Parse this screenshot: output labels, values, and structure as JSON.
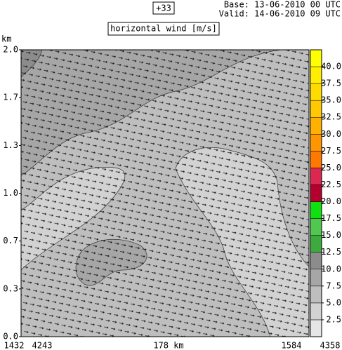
{
  "chart_data": {
    "type": "contour",
    "title": "horizontal wind [m/s]",
    "forecast": "+33",
    "base": "Base: 13-06-2010  00 UTC",
    "valid": "Valid: 14-06-2010  09 UTC",
    "y_label": "km",
    "ylim": [
      0,
      2.0
    ],
    "yticks": [
      {
        "value": 0,
        "label": "0.0"
      },
      {
        "value": 0.333,
        "label": "0.3"
      },
      {
        "value": 0.667,
        "label": "0.7"
      },
      {
        "value": 1.0,
        "label": "1.0"
      },
      {
        "value": 1.333,
        "label": "1.3"
      },
      {
        "value": 1.667,
        "label": "1.7"
      },
      {
        "value": 2.0,
        "label": "2.0"
      }
    ],
    "bottom_labels": [
      "1432",
      "4243",
      "178 km",
      "1584",
      "4358"
    ],
    "clim": [
      0,
      42.5
    ],
    "cticks": [
      {
        "value": 2.5,
        "label": "2.5"
      },
      {
        "value": 5,
        "label": "5.0"
      },
      {
        "value": 7.5,
        "label": "7.5"
      },
      {
        "value": 10,
        "label": "10.0"
      },
      {
        "value": 12.5,
        "label": "12.5"
      },
      {
        "value": 15,
        "label": "15.0"
      },
      {
        "value": 17.5,
        "label": "17.5"
      },
      {
        "value": 20,
        "label": "20.0"
      },
      {
        "value": 22.5,
        "label": "22.5"
      },
      {
        "value": 25,
        "label": "25.0"
      },
      {
        "value": 27.5,
        "label": "27.5"
      },
      {
        "value": 30,
        "label": "30.0"
      },
      {
        "value": 32.5,
        "label": "32.5"
      },
      {
        "value": 35,
        "label": "35.0"
      },
      {
        "value": 37.5,
        "label": "37.5"
      },
      {
        "value": 40,
        "label": "40.0"
      }
    ],
    "colors": [
      "#e6e6e6",
      "#d2d2d2",
      "#bebebe",
      "#a6a6a6",
      "#8c8c8c",
      "#3caa3c",
      "#50c850",
      "#10e010",
      "#b4002c",
      "#dc2850",
      "#ff7800",
      "#ff9600",
      "#ffb000",
      "#ffc800",
      "#ffdc00",
      "#ffee00",
      "#ffff00"
    ]
  }
}
